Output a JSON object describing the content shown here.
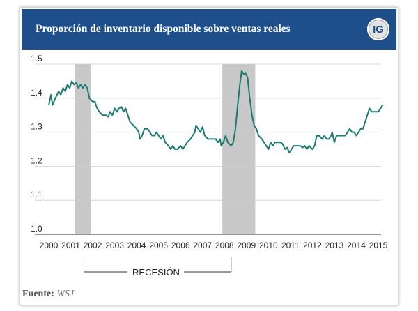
{
  "header": {
    "title": "Proporción de inventario disponible sobre ventas reales",
    "badge": "IG"
  },
  "footer": {
    "source_label": "Fuente:",
    "source_value": "WSJ"
  },
  "chart_data": {
    "type": "line",
    "title": "Proporción de inventario disponible sobre ventas reales",
    "xlabel": "",
    "ylabel": "",
    "xlim": [
      2000,
      2015.2
    ],
    "ylim": [
      1.0,
      1.5
    ],
    "x_ticks": [
      "2000",
      "2001",
      "2002",
      "2003",
      "2004",
      "2005",
      "2006",
      "2007",
      "2008",
      "2009",
      "2010",
      "2011",
      "2012",
      "2013",
      "2014",
      "2015"
    ],
    "y_ticks": [
      "1.0",
      "1.1",
      "1.2",
      "1.3",
      "1.4",
      "1.5"
    ],
    "grid": "horizontal",
    "recessions": [
      {
        "start": 2001.2,
        "end": 2001.9
      },
      {
        "start": 2007.9,
        "end": 2009.4
      }
    ],
    "annotation": {
      "label": "RECESIÓN",
      "from": 2001.6,
      "to": 2008.3
    },
    "series": [
      {
        "color": "#1c7a72",
        "points": [
          [
            2000.0,
            1.38
          ],
          [
            2000.1,
            1.41
          ],
          [
            2000.17,
            1.38
          ],
          [
            2000.3,
            1.4
          ],
          [
            2000.45,
            1.42
          ],
          [
            2000.55,
            1.41
          ],
          [
            2000.65,
            1.43
          ],
          [
            2000.75,
            1.42
          ],
          [
            2000.85,
            1.44
          ],
          [
            2000.95,
            1.43
          ],
          [
            2001.05,
            1.45
          ],
          [
            2001.15,
            1.44
          ],
          [
            2001.25,
            1.445
          ],
          [
            2001.35,
            1.43
          ],
          [
            2001.45,
            1.44
          ],
          [
            2001.55,
            1.43
          ],
          [
            2001.65,
            1.44
          ],
          [
            2001.75,
            1.43
          ],
          [
            2001.85,
            1.4
          ],
          [
            2002.0,
            1.39
          ],
          [
            2002.1,
            1.39
          ],
          [
            2002.2,
            1.37
          ],
          [
            2002.3,
            1.36
          ],
          [
            2002.45,
            1.35
          ],
          [
            2002.6,
            1.35
          ],
          [
            2002.7,
            1.345
          ],
          [
            2002.8,
            1.36
          ],
          [
            2002.9,
            1.35
          ],
          [
            2003.0,
            1.37
          ],
          [
            2003.1,
            1.36
          ],
          [
            2003.2,
            1.37
          ],
          [
            2003.3,
            1.375
          ],
          [
            2003.4,
            1.36
          ],
          [
            2003.5,
            1.37
          ],
          [
            2003.6,
            1.35
          ],
          [
            2003.7,
            1.33
          ],
          [
            2003.85,
            1.32
          ],
          [
            2004.0,
            1.31
          ],
          [
            2004.1,
            1.3
          ],
          [
            2004.15,
            1.28
          ],
          [
            2004.25,
            1.29
          ],
          [
            2004.35,
            1.31
          ],
          [
            2004.5,
            1.31
          ],
          [
            2004.6,
            1.3
          ],
          [
            2004.7,
            1.29
          ],
          [
            2004.8,
            1.29
          ],
          [
            2004.9,
            1.3
          ],
          [
            2005.0,
            1.29
          ],
          [
            2005.1,
            1.28
          ],
          [
            2005.2,
            1.29
          ],
          [
            2005.3,
            1.27
          ],
          [
            2005.45,
            1.26
          ],
          [
            2005.55,
            1.25
          ],
          [
            2005.65,
            1.26
          ],
          [
            2005.75,
            1.25
          ],
          [
            2005.85,
            1.25
          ],
          [
            2006.0,
            1.26
          ],
          [
            2006.1,
            1.25
          ],
          [
            2006.2,
            1.26
          ],
          [
            2006.3,
            1.27
          ],
          [
            2006.45,
            1.28
          ],
          [
            2006.55,
            1.29
          ],
          [
            2006.65,
            1.3
          ],
          [
            2006.7,
            1.32
          ],
          [
            2006.8,
            1.31
          ],
          [
            2006.9,
            1.3
          ],
          [
            2007.0,
            1.315
          ],
          [
            2007.1,
            1.29
          ],
          [
            2007.25,
            1.28
          ],
          [
            2007.4,
            1.28
          ],
          [
            2007.5,
            1.28
          ],
          [
            2007.6,
            1.28
          ],
          [
            2007.7,
            1.27
          ],
          [
            2007.8,
            1.28
          ],
          [
            2007.85,
            1.26
          ],
          [
            2007.95,
            1.27
          ],
          [
            2008.05,
            1.29
          ],
          [
            2008.15,
            1.27
          ],
          [
            2008.3,
            1.26
          ],
          [
            2008.4,
            1.27
          ],
          [
            2008.5,
            1.31
          ],
          [
            2008.6,
            1.38
          ],
          [
            2008.7,
            1.44
          ],
          [
            2008.78,
            1.48
          ],
          [
            2008.88,
            1.47
          ],
          [
            2008.95,
            1.475
          ],
          [
            2009.05,
            1.46
          ],
          [
            2009.15,
            1.4
          ],
          [
            2009.25,
            1.35
          ],
          [
            2009.35,
            1.32
          ],
          [
            2009.45,
            1.31
          ],
          [
            2009.55,
            1.29
          ],
          [
            2009.7,
            1.28
          ],
          [
            2009.8,
            1.27
          ],
          [
            2009.9,
            1.26
          ],
          [
            2010.0,
            1.25
          ],
          [
            2010.1,
            1.27
          ],
          [
            2010.2,
            1.26
          ],
          [
            2010.3,
            1.27
          ],
          [
            2010.45,
            1.27
          ],
          [
            2010.55,
            1.27
          ],
          [
            2010.65,
            1.265
          ],
          [
            2010.75,
            1.25
          ],
          [
            2010.85,
            1.255
          ],
          [
            2010.95,
            1.24
          ],
          [
            2011.05,
            1.25
          ],
          [
            2011.15,
            1.26
          ],
          [
            2011.3,
            1.26
          ],
          [
            2011.45,
            1.26
          ],
          [
            2011.55,
            1.255
          ],
          [
            2011.65,
            1.26
          ],
          [
            2011.75,
            1.25
          ],
          [
            2011.85,
            1.26
          ],
          [
            2012.0,
            1.25
          ],
          [
            2012.1,
            1.26
          ],
          [
            2012.2,
            1.29
          ],
          [
            2012.3,
            1.29
          ],
          [
            2012.45,
            1.28
          ],
          [
            2012.55,
            1.29
          ],
          [
            2012.65,
            1.28
          ],
          [
            2012.75,
            1.28
          ],
          [
            2012.85,
            1.29
          ],
          [
            2012.9,
            1.3
          ],
          [
            2013.0,
            1.27
          ],
          [
            2013.1,
            1.29
          ],
          [
            2013.2,
            1.29
          ],
          [
            2013.35,
            1.29
          ],
          [
            2013.5,
            1.29
          ],
          [
            2013.6,
            1.3
          ],
          [
            2013.7,
            1.31
          ],
          [
            2013.8,
            1.3
          ],
          [
            2013.9,
            1.3
          ],
          [
            2014.0,
            1.29
          ],
          [
            2014.1,
            1.3
          ],
          [
            2014.2,
            1.31
          ],
          [
            2014.3,
            1.31
          ],
          [
            2014.4,
            1.33
          ],
          [
            2014.5,
            1.35
          ],
          [
            2014.6,
            1.37
          ],
          [
            2014.7,
            1.36
          ],
          [
            2014.8,
            1.36
          ],
          [
            2014.9,
            1.36
          ],
          [
            2015.0,
            1.36
          ],
          [
            2015.1,
            1.37
          ],
          [
            2015.2,
            1.38
          ]
        ]
      }
    ]
  }
}
